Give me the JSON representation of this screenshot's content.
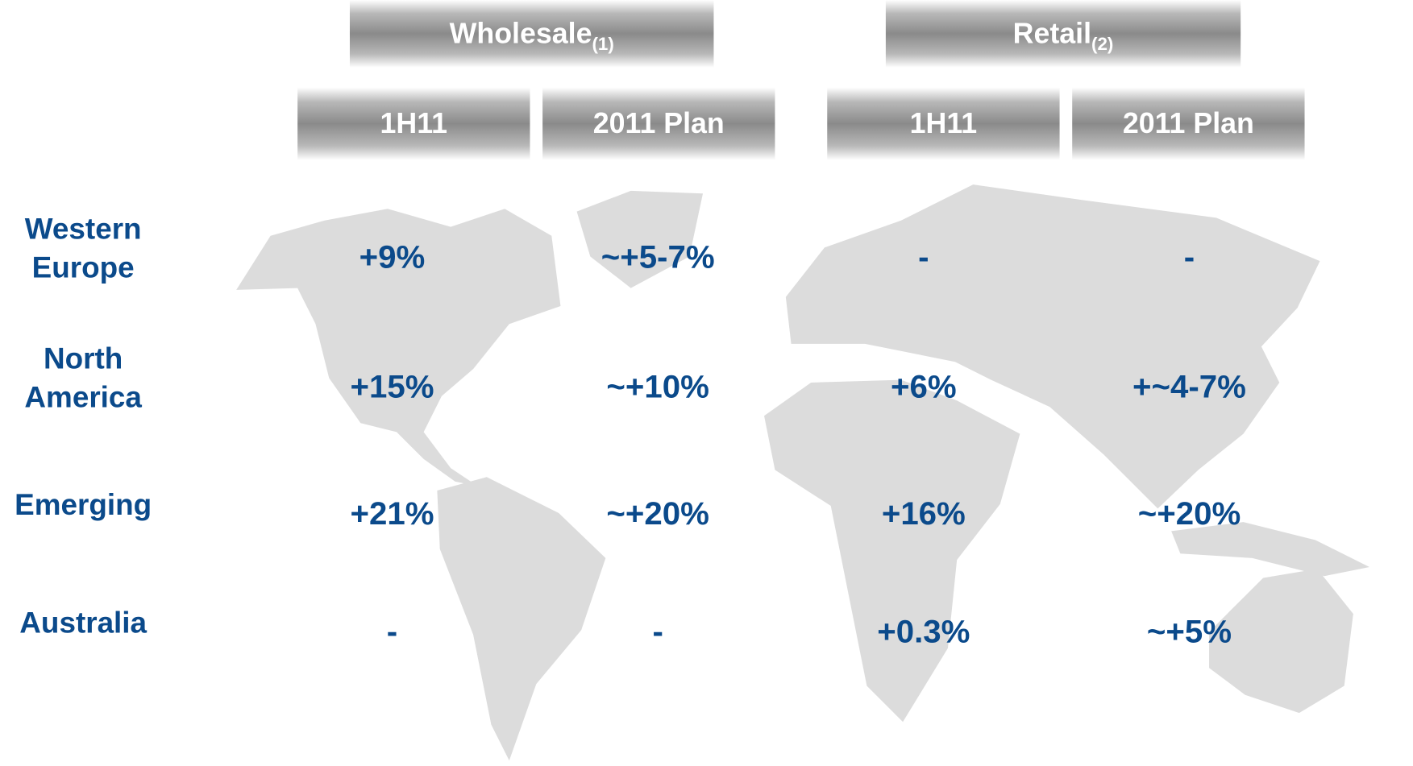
{
  "table": {
    "groups": [
      {
        "text": "Wholesale",
        "note": "(1)"
      },
      {
        "text": "Retail",
        "note": "(2)"
      }
    ],
    "columns": [
      "1H11",
      "2011 Plan",
      "1H11",
      "2011 Plan"
    ],
    "rows": [
      {
        "label": [
          "Western",
          "Europe"
        ],
        "cells": [
          "+9%",
          "~+5-7%",
          "-",
          "-"
        ]
      },
      {
        "label": [
          "North",
          "America"
        ],
        "cells": [
          "+15%",
          "~+10%",
          "+6%",
          "+~4-7%"
        ]
      },
      {
        "label": [
          "Emerging"
        ],
        "cells": [
          "+21%",
          "~+20%",
          "+16%",
          "~+20%"
        ]
      },
      {
        "label": [
          "Australia"
        ],
        "cells": [
          "-",
          "-",
          "+0.3%",
          "~+5%"
        ]
      }
    ]
  }
}
